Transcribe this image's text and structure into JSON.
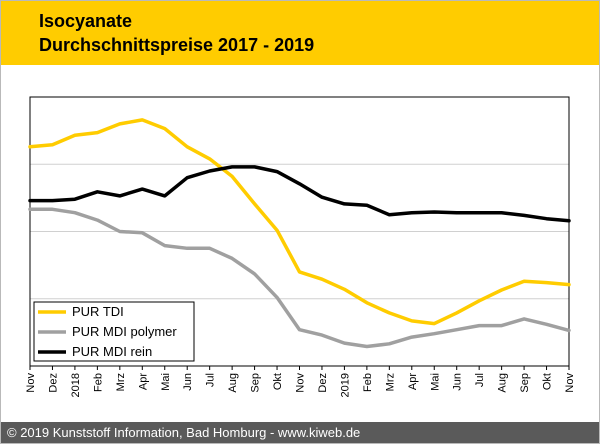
{
  "header": {
    "title": "Isocyanate",
    "subtitle": "Durchschnittspreise 2017 - 2019"
  },
  "footer": {
    "text": "© 2019 Kunststoff Information, Bad Homburg - www.kiweb.de"
  },
  "colors": {
    "header_bg": "#ffcc00",
    "footer_bg": "#5a5a5a",
    "pur_tdi": "#ffcc00",
    "pur_mdi_polymer": "#a0a0a0",
    "pur_mdi_rein": "#000000"
  },
  "chart_data": {
    "type": "line",
    "x": [
      "Nov",
      "Dez",
      "2018",
      "Feb",
      "Mrz",
      "Apr",
      "Mai",
      "Jun",
      "Jul",
      "Aug",
      "Sep",
      "Okt",
      "Nov",
      "Dez",
      "2019",
      "Feb",
      "Mrz",
      "Apr",
      "Mai",
      "Jun",
      "Jul",
      "Aug",
      "Sep",
      "Okt",
      "Nov"
    ],
    "ylim": [
      0,
      4
    ],
    "yticks": [
      0,
      1,
      2,
      3,
      4
    ],
    "y_tick_labels_shown": false,
    "grid": "horizontal",
    "legend_position": "bottom-left",
    "series": [
      {
        "name": "PUR TDI",
        "color": "#ffcc00",
        "values": [
          3.26,
          3.29,
          3.43,
          3.47,
          3.6,
          3.66,
          3.53,
          3.26,
          3.08,
          2.82,
          2.41,
          2.02,
          1.4,
          1.29,
          1.14,
          0.94,
          0.79,
          0.67,
          0.63,
          0.79,
          0.97,
          1.13,
          1.26,
          1.24,
          1.21
        ]
      },
      {
        "name": "PUR MDI polymer",
        "color": "#a0a0a0",
        "values": [
          2.33,
          2.33,
          2.28,
          2.17,
          2.0,
          1.98,
          1.79,
          1.75,
          1.75,
          1.6,
          1.37,
          1.02,
          0.54,
          0.46,
          0.34,
          0.29,
          0.33,
          0.43,
          0.48,
          0.54,
          0.6,
          0.6,
          0.7,
          0.62,
          0.53
        ]
      },
      {
        "name": "PUR MDI rein",
        "color": "#000000",
        "values": [
          2.46,
          2.46,
          2.48,
          2.59,
          2.53,
          2.63,
          2.53,
          2.8,
          2.9,
          2.96,
          2.96,
          2.89,
          2.71,
          2.51,
          2.41,
          2.39,
          2.25,
          2.28,
          2.29,
          2.28,
          2.28,
          2.28,
          2.24,
          2.19,
          2.16
        ]
      }
    ]
  }
}
